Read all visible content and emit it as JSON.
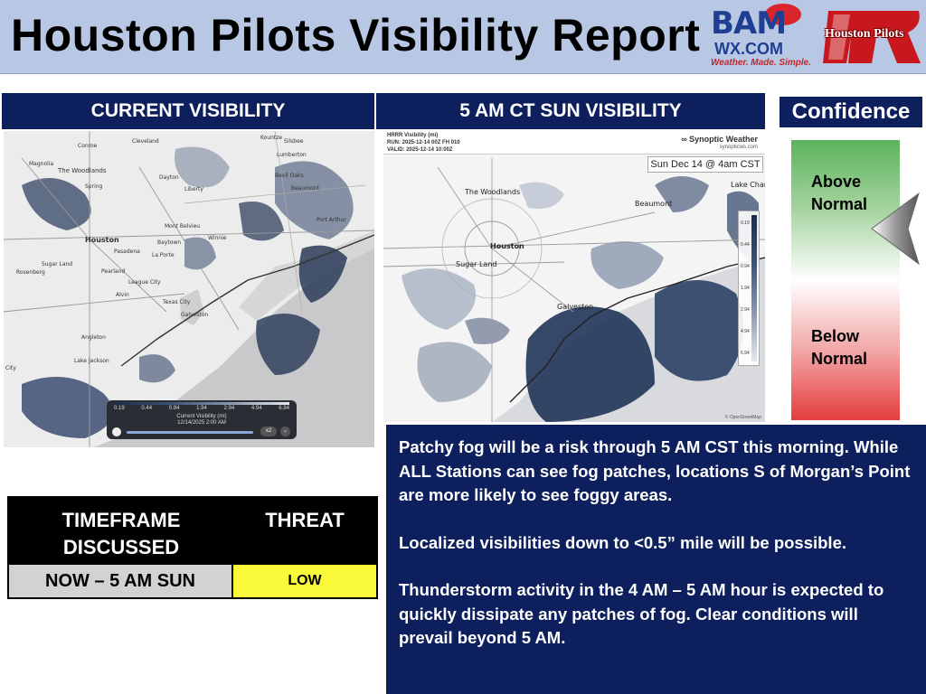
{
  "header": {
    "title": "Houston Pilots Visibility Report",
    "logo_bam": {
      "main": "BAM",
      "sub": "WX.COM",
      "tagline": "Weather. Made. Simple."
    },
    "logo_pilots": {
      "text": "Houston Pilots"
    }
  },
  "panels": {
    "current_title": "CURRENT VISIBILITY",
    "forecast_title": "5 AM CT SUN VISIBILITY",
    "confidence_title": "Confidence"
  },
  "current_map": {
    "places": [
      "Conroe",
      "Cleveland",
      "Kountze",
      "Silsbee",
      "Magnolia",
      "The Woodlands",
      "Lumberton",
      "Spring",
      "Dayton",
      "Liberty",
      "Beaumont",
      "Bevil Oaks",
      "Mont Belvieu",
      "Port Arthur",
      "Houston",
      "Baytown",
      "Winnie",
      "Pasadena",
      "La Porte",
      "Sugar Land",
      "Pearland",
      "Rosenberg",
      "League City",
      "Alvin",
      "Texas City",
      "Galveston",
      "Angleton",
      "Lake Jackson",
      "City"
    ],
    "legend_ticks": [
      "0.19",
      "0.44",
      "0.94",
      "1.94",
      "2.94",
      "4.94",
      "6.94"
    ],
    "legend_label": "Current Visibility (mi)",
    "timestamp": "12/14/2025 2:00 AM",
    "speed": "x2"
  },
  "forecast_map": {
    "product": "HRRR Visibility (mi)",
    "run": "RUN: 2025-12-14 00Z FH 010",
    "valid": "VALID: 2025-12-14 10:00Z",
    "brand": "∞ Synoptic Weather",
    "brand_url": "synopticws.com",
    "valid_box": "Sun Dec 14 @ 4am CST",
    "places": [
      "The Woodlands",
      "Beaumont",
      "Lake Charles",
      "Houston",
      "Sugar Land",
      "Galveston"
    ],
    "legend_ticks": [
      "0.19",
      "0.44",
      "0.94",
      "1.94",
      "2.94",
      "4.94",
      "6.94"
    ],
    "credit": "© OpenStreetMap"
  },
  "confidence": {
    "above": "Above Normal",
    "below": "Below Normal",
    "level": "above-normal"
  },
  "threat_table": {
    "col1_header": "TIMEFRAME DISCUSSED",
    "col2_header": "THREAT",
    "timeframe": "NOW – 5 AM SUN",
    "threat": "LOW"
  },
  "discussion": {
    "p1": "Patchy fog will be a risk through 5 AM CST this morning. While ALL Stations can see fog patches, locations S of Morgan’s Point are more likely to see foggy areas.",
    "p2": "Localized visibilities down to <0.5” mile will be possible.",
    "p3": "Thunderstorm activity in the 4 AM – 5 AM hour is expected to quickly dissipate any patches of fog. Clear conditions will prevail beyond 5 AM."
  },
  "colors": {
    "header_bg": "#b8c8e4",
    "navy": "#0d1f5c",
    "threat_low": "#fafa3a",
    "fog_dark": "#2c3d5c",
    "fog_mid": "#7a8aa4"
  }
}
